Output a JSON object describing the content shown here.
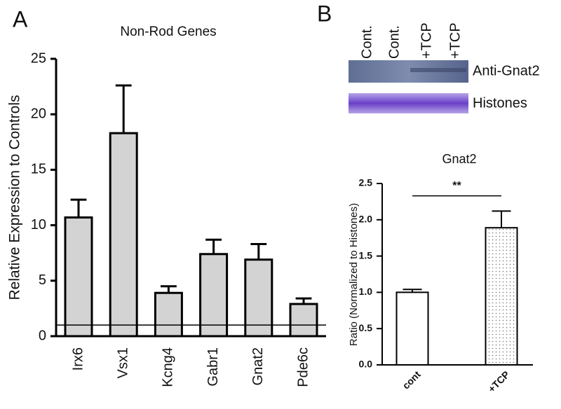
{
  "panel_labels": [
    "A",
    "B"
  ],
  "blot": {
    "lanes": [
      "Cont.",
      "Cont.",
      "+TCP",
      "+TCP"
    ],
    "rows": [
      "Anti-Gnat2",
      "Histones"
    ]
  },
  "chart_data": [
    {
      "type": "bar",
      "title": "Non-Rod Genes",
      "ylabel": "Relative Expression to Controls",
      "categories": [
        "Irx6",
        "Vsx1",
        "Kcng4",
        "Gabr1",
        "Gnat2",
        "Pde6c"
      ],
      "values": [
        10.7,
        18.3,
        3.9,
        7.4,
        6.9,
        2.9
      ],
      "errors": [
        1.6,
        4.3,
        0.6,
        1.3,
        1.4,
        0.5
      ],
      "color": "#d3d3d3",
      "reference_line": 1,
      "ylim": [
        0,
        25
      ],
      "yticks": [
        0,
        5,
        10,
        15,
        20,
        25
      ]
    },
    {
      "type": "bar",
      "title": "Gnat2",
      "ylabel": "Ratio (Normalized to Histones)",
      "categories": [
        "cont",
        "+TCP"
      ],
      "values": [
        1.0,
        1.89
      ],
      "errors": [
        0.04,
        0.23
      ],
      "color": "#ffffff",
      "fills": [
        "solid",
        "dotted"
      ],
      "significance": {
        "label": "**",
        "y": 2.33
      },
      "ylim": [
        0,
        2.5
      ],
      "yticks": [
        {
          "value": 0,
          "label": "0.0"
        },
        0.5,
        {
          "value": 1,
          "label": "1.0"
        },
        1.5,
        {
          "value": 2,
          "label": "2.0"
        },
        2.5
      ]
    }
  ]
}
